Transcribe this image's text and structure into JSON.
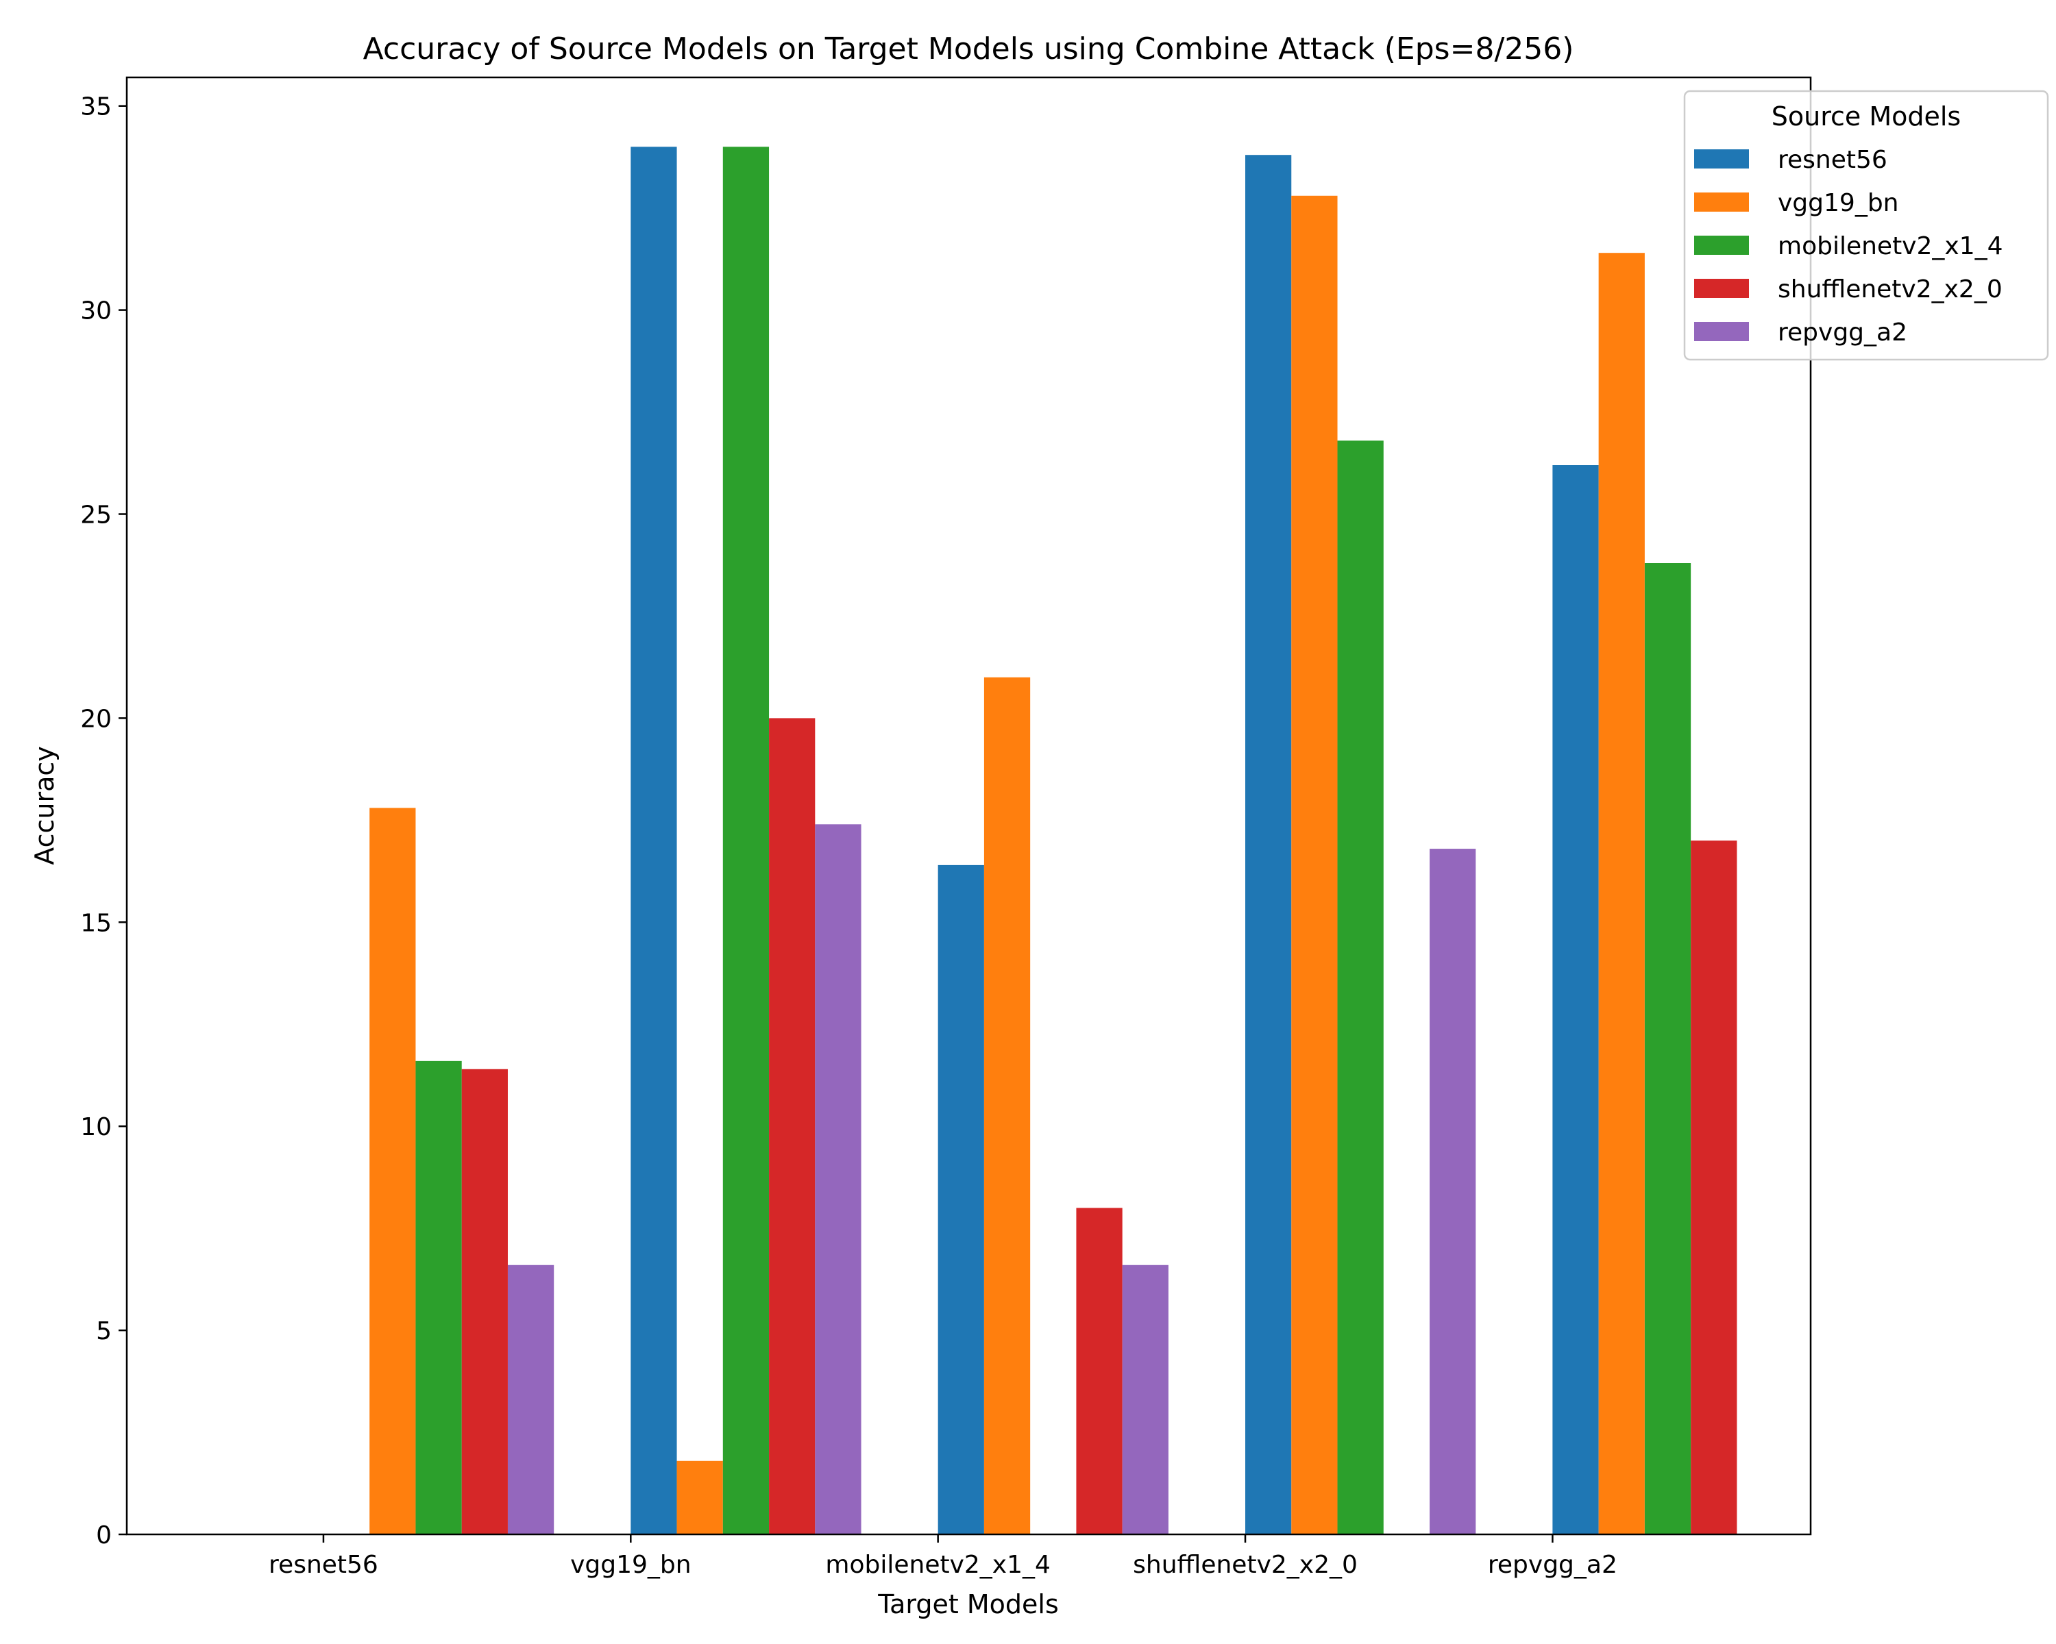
{
  "chart_data": {
    "type": "bar",
    "title": "Accuracy of Source Models on Target Models using Combine Attack (Eps=8/256)",
    "xlabel": "Target Models",
    "ylabel": "Accuracy",
    "categories": [
      "resnet56",
      "vgg19_bn",
      "mobilenetv2_x1_4",
      "shufflenetv2_x2_0",
      "repvgg_a2"
    ],
    "ylim": [
      0,
      35.7
    ],
    "yticks": [
      0,
      5,
      10,
      15,
      20,
      25,
      30,
      35
    ],
    "legend": {
      "title": "Source Models",
      "placement": "top-right"
    },
    "grid": false,
    "series": [
      {
        "name": "resnet56",
        "color": "#1f77b4",
        "values": [
          0,
          34.0,
          16.4,
          33.8,
          26.2
        ]
      },
      {
        "name": "vgg19_bn",
        "color": "#ff7f0e",
        "values": [
          17.8,
          1.8,
          21.0,
          32.8,
          31.4
        ]
      },
      {
        "name": "mobilenetv2_x1_4",
        "color": "#2ca02c",
        "values": [
          11.6,
          34.0,
          0,
          26.8,
          23.8
        ]
      },
      {
        "name": "shufflenetv2_x2_0",
        "color": "#d62728",
        "values": [
          11.4,
          20.0,
          8.0,
          0,
          17.0
        ]
      },
      {
        "name": "repvgg_a2",
        "color": "#9467bd",
        "values": [
          6.6,
          17.4,
          6.6,
          16.8,
          0
        ]
      }
    ]
  }
}
